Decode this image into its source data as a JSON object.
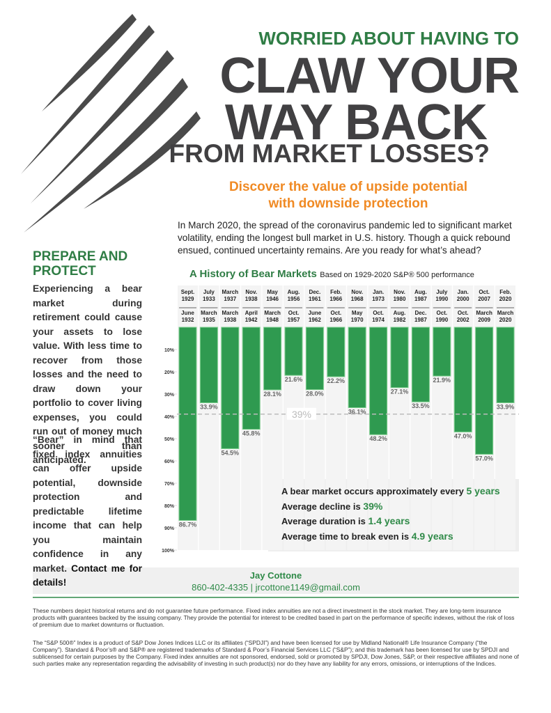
{
  "header": {
    "kicker": "WORRIED ABOUT HAVING TO",
    "headline_1": "CLAW YOUR",
    "headline_2": "WAY BACK",
    "headline_3": "FROM MARKET LOSSES?",
    "subtitle_1": "Discover the value of upside potential",
    "subtitle_2": "with downside protection"
  },
  "intro": "In March 2020, the spread of the coronavirus pandemic led to significant market volatility, ending the longest bull market in U.S. history. Though a quick rebound ensued, continued uncertainty remains. Are you ready for what’s ahead?",
  "sidebar": {
    "title": "PREPARE AND PROTECT",
    "paragraph_1": "Experiencing a bear market during retirement could cause your assets to lose value. With less time to recover from those losses and the need to draw down your portfolio to cover living expenses, you could run out of money much sooner than anticipated.",
    "paragraph_2": "“Bear” in mind that fixed index annuities can offer upside potential, downside protection and predictable lifetime income that can help you maintain confidence in any market.",
    "paragraph_2_cta": "Contact me for details!"
  },
  "chart_data": {
    "type": "bar",
    "title": "A History of Bear Markets",
    "subtitle": "Based on 1929-2020 S&P® 500 performance",
    "color": "#2f9a50",
    "categories": [
      "Sept. 1929",
      "July 1933",
      "March 1937",
      "Nov. 1938",
      "May 1946",
      "Aug. 1956",
      "Dec. 1961",
      "Feb. 1966",
      "Nov. 1968",
      "Jan. 1973",
      "Nov. 1980",
      "Aug. 1987",
      "July 1990",
      "Jan. 2000",
      "Oct. 2007",
      "Feb. 2020"
    ],
    "end_dates": [
      "June 1932",
      "March 1935",
      "March 1938",
      "April 1942",
      "March 1948",
      "Oct. 1957",
      "June 1962",
      "Oct. 1966",
      "May 1970",
      "Oct. 1974",
      "Aug. 1982",
      "Dec. 1987",
      "Oct. 1990",
      "Oct. 2002",
      "March 2009",
      "March 2020"
    ],
    "values": [
      86.7,
      33.9,
      54.5,
      45.8,
      28.1,
      21.6,
      28.0,
      22.2,
      36.1,
      48.2,
      27.1,
      33.5,
      21.9,
      47.0,
      57.0,
      33.9
    ],
    "value_labels": [
      "86.7%",
      "33.9%",
      "54.5%",
      "45.8%",
      "28.1%",
      "21.6%",
      "28.0%",
      "22.2%",
      "36.1%",
      "48.2%",
      "27.1%",
      "33.5%",
      "21.9%",
      "47.0%",
      "57.0%",
      "33.9%"
    ],
    "ylim": [
      0,
      100
    ],
    "yticks": [
      {
        "value": 10,
        "label": "10%"
      },
      {
        "value": 20,
        "label": "20%"
      },
      {
        "value": 30,
        "label": "30%"
      },
      {
        "value": 40,
        "label": "40%"
      },
      {
        "value": 50,
        "label": "50%"
      },
      {
        "value": 60,
        "label": "60%"
      },
      {
        "value": 70,
        "label": "70%"
      },
      {
        "value": 80,
        "label": "80%"
      },
      {
        "value": 90,
        "label": "90%"
      },
      {
        "value": 100,
        "label": "100%"
      }
    ],
    "average_line": {
      "value": 39,
      "label": "39%"
    }
  },
  "stats": [
    {
      "text": "A bear market occurs approximately every",
      "highlight": "5 years"
    },
    {
      "text": "Average decline is",
      "highlight": "39%"
    },
    {
      "text": "Average duration is",
      "highlight": "1.4 years"
    },
    {
      "text": "Average time to break even is",
      "highlight": "4.9 years"
    }
  ],
  "contact": {
    "name": "Jay Cottone",
    "details": "860-402-4335 | jrcottone1149@gmail.com"
  },
  "disclaimer_1": "These numbers depict historical returns and do not guarantee future performance. Fixed index annuities are not a direct investment in the stock market. They are long-term insurance products with guarantees backed by the issuing company. They provide the potential for interest to be credited based in part on the performance of specific indexes, without the risk of loss of premium due to market downturns or fluctuation.",
  "disclaimer_2": "The “S&P 500®” Index is a product of S&P Dow Jones Indices LLC or its affiliates (“SPDJI”) and have been licensed for use by Midland National® Life Insurance Company (“the Company”). Standard & Poor’s® and S&P® are registered trademarks of Standard & Poor’s Financial Services LLC (“S&P”); and this trademark has been licensed for use by SPDJI and sublicensed for certain purposes by the Company. Fixed index annuities are not sponsored, endorsed, sold or promoted by SPDJI, Dow Jones, S&P, or their respective affiliates and none of such parties make any representation regarding the advisability of investing in such product(s) nor do they have any liability for any errors, omissions, or interruptions of the Indices."
}
